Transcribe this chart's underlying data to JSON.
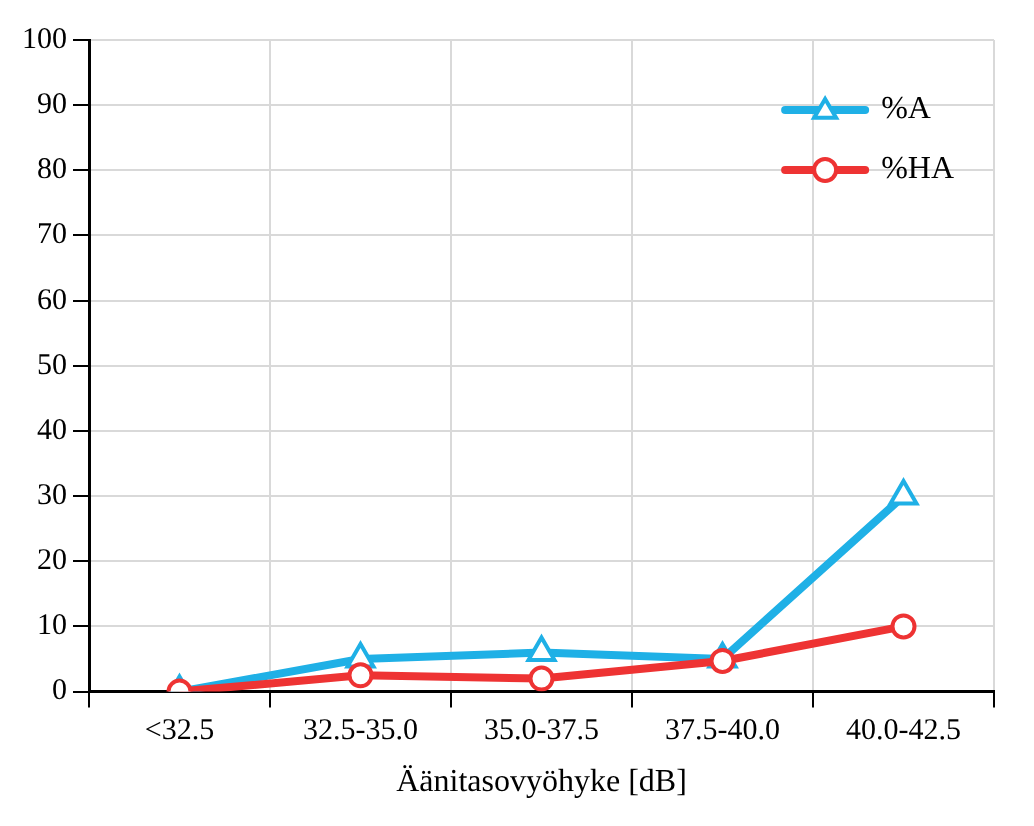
{
  "chart_data": {
    "type": "line",
    "xlabel": "Äänitasovyöhyke [dB]",
    "categories": [
      "<32.5",
      "32.5-35.0",
      "35.0-37.5",
      "37.5-40.0",
      "40.0-42.5"
    ],
    "series": [
      {
        "name": "%A",
        "color": "#1fb0e6",
        "marker": "triangle",
        "values": [
          0,
          5,
          6,
          5,
          30
        ]
      },
      {
        "name": "%HA",
        "color": "#ee3333",
        "marker": "circle",
        "values": [
          0,
          2.5,
          2,
          4.7,
          10
        ]
      }
    ],
    "ylim": [
      0,
      100
    ],
    "yticks": [
      0,
      10,
      20,
      30,
      40,
      50,
      60,
      70,
      80,
      90,
      100
    ],
    "grid": true,
    "legend": "top right",
    "line_style": "solid"
  }
}
